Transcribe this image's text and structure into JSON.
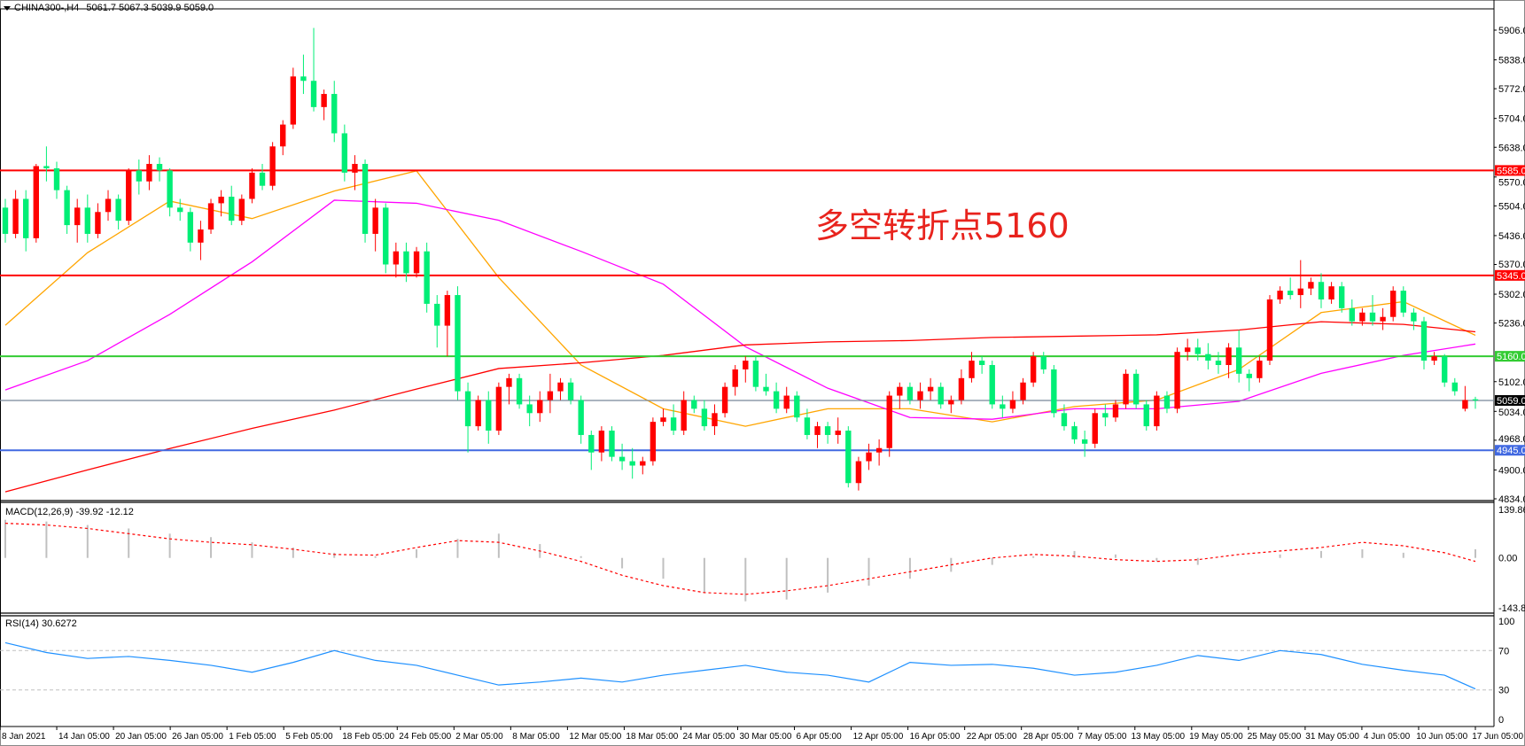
{
  "header": {
    "symbol": "CHINA300-,H4",
    "ohlc": "5061.7 5067.3 5039.9 5059.0"
  },
  "annotation": "多空转折点5160",
  "macd": {
    "label": "MACD(12,26,9) -39.92 -12.12",
    "axis": [
      "139.86",
      "0.00",
      "-143.82"
    ],
    "range": [
      -143.82,
      139.86
    ]
  },
  "rsi": {
    "label": "RSI(14) 30.6272",
    "axis": [
      "100",
      "70",
      "30",
      "0"
    ],
    "levels": [
      70,
      30
    ]
  },
  "colors": {
    "bull": "#ff0000",
    "bear": "#00ee76",
    "ma_fast": "#ffa500",
    "ma_mid": "#ff00ff",
    "ma_slow": "#ff0000",
    "macd_hist": "#c0c0c0",
    "macd_signal": "#ff0000",
    "rsi": "#1e90ff"
  },
  "price_axis": {
    "range": [
      4834,
      5906
    ],
    "labels": [
      "5906.0",
      "5838.0",
      "5772.0",
      "5704.0",
      "5638.0",
      "5570.0",
      "5504.0",
      "5436.0",
      "5370.0",
      "5302.0",
      "5236.0",
      "5102.0",
      "5034.0",
      "4968.0",
      "4900.0",
      "4834.0"
    ]
  },
  "levels": [
    {
      "price": 5585,
      "label": "5585.0",
      "color": "#ff0000"
    },
    {
      "price": 5345,
      "label": "5345.0",
      "color": "#ff0000"
    },
    {
      "price": 5160,
      "label": "5160.0",
      "color": "#33cc33"
    },
    {
      "price": 5059,
      "label": "5059.0",
      "color": "#000000",
      "line": "#778899"
    },
    {
      "price": 4945,
      "label": "4945.0",
      "color": "#4169e1"
    }
  ],
  "dates": [
    "8 Jan 2021",
    "14 Jan 05:00",
    "20 Jan 05:00",
    "26 Jan 05:00",
    "1 Feb 05:00",
    "5 Feb 05:00",
    "18 Feb 05:00",
    "24 Feb 05:00",
    "2 Mar 05:00",
    "8 Mar 05:00",
    "12 Mar 05:00",
    "18 Mar 05:00",
    "24 Mar 05:00",
    "30 Mar 05:00",
    "6 Apr 05:00",
    "12 Apr 05:00",
    "16 Apr 05:00",
    "22 Apr 05:00",
    "28 Apr 05:00",
    "7 May 05:00",
    "13 May 05:00",
    "19 May 05:00",
    "25 May 05:00",
    "31 May 05:00",
    "4 Jun 05:00",
    "10 Jun 05:00",
    "17 Jun 05:00"
  ],
  "candles": [
    [
      5500,
      5520,
      5420,
      5440
    ],
    [
      5440,
      5540,
      5430,
      5520
    ],
    [
      5520,
      5540,
      5400,
      5430
    ],
    [
      5430,
      5600,
      5420,
      5595
    ],
    [
      5595,
      5640,
      5560,
      5590
    ],
    [
      5590,
      5605,
      5520,
      5540
    ],
    [
      5540,
      5550,
      5440,
      5460
    ],
    [
      5460,
      5520,
      5420,
      5500
    ],
    [
      5500,
      5530,
      5420,
      5440
    ],
    [
      5440,
      5510,
      5430,
      5490
    ],
    [
      5490,
      5540,
      5470,
      5520
    ],
    [
      5520,
      5530,
      5450,
      5470
    ],
    [
      5470,
      5590,
      5460,
      5585
    ],
    [
      5585,
      5610,
      5530,
      5560
    ],
    [
      5560,
      5620,
      5540,
      5600
    ],
    [
      5600,
      5615,
      5560,
      5585
    ],
    [
      5585,
      5590,
      5480,
      5500
    ],
    [
      5500,
      5520,
      5470,
      5490
    ],
    [
      5490,
      5500,
      5400,
      5420
    ],
    [
      5420,
      5470,
      5380,
      5450
    ],
    [
      5450,
      5520,
      5440,
      5510
    ],
    [
      5510,
      5540,
      5480,
      5525
    ],
    [
      5525,
      5550,
      5460,
      5470
    ],
    [
      5470,
      5530,
      5460,
      5520
    ],
    [
      5520,
      5590,
      5510,
      5580
    ],
    [
      5580,
      5600,
      5540,
      5550
    ],
    [
      5550,
      5650,
      5540,
      5640
    ],
    [
      5640,
      5700,
      5620,
      5690
    ],
    [
      5690,
      5820,
      5680,
      5800
    ],
    [
      5800,
      5850,
      5760,
      5790
    ],
    [
      5790,
      5911,
      5720,
      5730
    ],
    [
      5730,
      5770,
      5700,
      5760
    ],
    [
      5760,
      5790,
      5650,
      5670
    ],
    [
      5670,
      5690,
      5560,
      5580
    ],
    [
      5580,
      5620,
      5540,
      5600
    ],
    [
      5600,
      5610,
      5420,
      5440
    ],
    [
      5440,
      5520,
      5400,
      5500
    ],
    [
      5500,
      5510,
      5350,
      5370
    ],
    [
      5370,
      5420,
      5340,
      5400
    ],
    [
      5400,
      5420,
      5330,
      5350
    ],
    [
      5350,
      5410,
      5340,
      5400
    ],
    [
      5400,
      5420,
      5260,
      5280
    ],
    [
      5280,
      5300,
      5180,
      5230
    ],
    [
      5230,
      5310,
      5160,
      5300
    ],
    [
      5300,
      5320,
      5060,
      5080
    ],
    [
      5080,
      5100,
      4940,
      5000
    ],
    [
      5000,
      5070,
      4990,
      5060
    ],
    [
      5060,
      5080,
      4960,
      4990
    ],
    [
      4990,
      5100,
      4980,
      5090
    ],
    [
      5090,
      5120,
      5050,
      5110
    ],
    [
      5110,
      5120,
      5040,
      5050
    ],
    [
      5050,
      5070,
      5000,
      5030
    ],
    [
      5030,
      5080,
      5010,
      5060
    ],
    [
      5060,
      5120,
      5030,
      5080
    ],
    [
      5080,
      5110,
      5060,
      5100
    ],
    [
      5100,
      5110,
      5050,
      5060
    ],
    [
      5060,
      5070,
      4960,
      4980
    ],
    [
      4980,
      4990,
      4900,
      4940
    ],
    [
      4940,
      5000,
      4920,
      4990
    ],
    [
      4990,
      5000,
      4920,
      4930
    ],
    [
      4930,
      4960,
      4900,
      4920
    ],
    [
      4920,
      4950,
      4880,
      4910
    ],
    [
      4910,
      4930,
      4890,
      4920
    ],
    [
      4920,
      5020,
      4910,
      5010
    ],
    [
      5010,
      5040,
      5000,
      5020
    ],
    [
      5020,
      5050,
      4980,
      4990
    ],
    [
      4990,
      5080,
      4980,
      5060
    ],
    [
      5060,
      5070,
      5030,
      5040
    ],
    [
      5040,
      5060,
      4990,
      5000
    ],
    [
      5000,
      5050,
      4980,
      5030
    ],
    [
      5030,
      5100,
      5020,
      5090
    ],
    [
      5090,
      5140,
      5070,
      5130
    ],
    [
      5130,
      5160,
      5100,
      5150
    ],
    [
      5150,
      5160,
      5080,
      5090
    ],
    [
      5090,
      5120,
      5070,
      5080
    ],
    [
      5080,
      5100,
      5030,
      5040
    ],
    [
      5040,
      5090,
      5030,
      5070
    ],
    [
      5070,
      5080,
      5010,
      5020
    ],
    [
      5020,
      5040,
      4970,
      4980
    ],
    [
      4980,
      5010,
      4950,
      5000
    ],
    [
      5000,
      5010,
      4960,
      4980
    ],
    [
      4980,
      5020,
      4960,
      4990
    ],
    [
      4990,
      5000,
      4860,
      4870
    ],
    [
      4870,
      4930,
      4853,
      4920
    ],
    [
      4920,
      4960,
      4900,
      4940
    ],
    [
      4940,
      4970,
      4910,
      4950
    ],
    [
      4950,
      5080,
      4930,
      5070
    ],
    [
      5070,
      5100,
      5040,
      5090
    ],
    [
      5090,
      5100,
      5050,
      5060
    ],
    [
      5060,
      5100,
      5040,
      5080
    ],
    [
      5080,
      5110,
      5060,
      5090
    ],
    [
      5090,
      5100,
      5040,
      5050
    ],
    [
      5050,
      5070,
      5030,
      5060
    ],
    [
      5060,
      5130,
      5050,
      5110
    ],
    [
      5110,
      5170,
      5100,
      5150
    ],
    [
      5150,
      5160,
      5120,
      5140
    ],
    [
      5140,
      5150,
      5040,
      5050
    ],
    [
      5050,
      5070,
      5020,
      5040
    ],
    [
      5040,
      5080,
      5030,
      5060
    ],
    [
      5060,
      5110,
      5050,
      5100
    ],
    [
      5100,
      5170,
      5090,
      5160
    ],
    [
      5160,
      5170,
      5120,
      5130
    ],
    [
      5130,
      5140,
      5020,
      5030
    ],
    [
      5030,
      5050,
      4990,
      5000
    ],
    [
      5000,
      5010,
      4960,
      4970
    ],
    [
      4970,
      4990,
      4930,
      4960
    ],
    [
      4960,
      5040,
      4950,
      5030
    ],
    [
      5030,
      5050,
      5000,
      5020
    ],
    [
      5020,
      5060,
      5010,
      5050
    ],
    [
      5050,
      5130,
      5040,
      5120
    ],
    [
      5120,
      5130,
      5040,
      5050
    ],
    [
      5050,
      5060,
      4990,
      5000
    ],
    [
      5000,
      5080,
      4990,
      5070
    ],
    [
      5070,
      5080,
      5030,
      5040
    ],
    [
      5040,
      5180,
      5030,
      5170
    ],
    [
      5170,
      5200,
      5150,
      5180
    ],
    [
      5180,
      5200,
      5150,
      5165
    ],
    [
      5165,
      5190,
      5130,
      5150
    ],
    [
      5150,
      5170,
      5120,
      5140
    ],
    [
      5140,
      5190,
      5110,
      5180
    ],
    [
      5180,
      5220,
      5100,
      5120
    ],
    [
      5120,
      5130,
      5080,
      5110
    ],
    [
      5110,
      5160,
      5100,
      5150
    ],
    [
      5150,
      5300,
      5140,
      5290
    ],
    [
      5290,
      5320,
      5280,
      5310
    ],
    [
      5310,
      5340,
      5290,
      5300
    ],
    [
      5300,
      5380,
      5270,
      5315
    ],
    [
      5315,
      5340,
      5300,
      5330
    ],
    [
      5330,
      5350,
      5270,
      5290
    ],
    [
      5290,
      5330,
      5280,
      5320
    ],
    [
      5320,
      5330,
      5260,
      5270
    ],
    [
      5270,
      5290,
      5230,
      5240
    ],
    [
      5240,
      5270,
      5230,
      5260
    ],
    [
      5260,
      5300,
      5230,
      5240
    ],
    [
      5240,
      5270,
      5220,
      5250
    ],
    [
      5250,
      5320,
      5240,
      5310
    ],
    [
      5310,
      5320,
      5250,
      5260
    ],
    [
      5260,
      5270,
      5220,
      5240
    ],
    [
      5240,
      5250,
      5130,
      5150
    ],
    [
      5150,
      5170,
      5140,
      5160
    ],
    [
      5160,
      5165,
      5090,
      5100
    ],
    [
      5100,
      5110,
      5070,
      5080
    ],
    [
      5040,
      5092,
      5034,
      5060
    ],
    [
      5061.7,
      5067.3,
      5039.9,
      5059.0
    ]
  ],
  "moving_averages": [
    {
      "color": "#ffa500",
      "step": 8,
      "values": [
        5231,
        5397,
        5515,
        5475,
        5538,
        5584,
        5340,
        5140,
        5040,
        5000,
        5040,
        5040,
        5010,
        5045,
        5060,
        5130,
        5260,
        5285,
        5208
      ]
    },
    {
      "color": "#ff00ff",
      "step": 8,
      "values": [
        5083,
        5150,
        5256,
        5376,
        5517,
        5510,
        5471,
        5400,
        5325,
        5182,
        5087,
        5020,
        5016,
        5040,
        5040,
        5057,
        5121,
        5162,
        5188
      ]
    },
    {
      "color": "#ff0000",
      "step": 8,
      "values": [
        4850,
        4900,
        4949,
        4995,
        5037,
        5085,
        5132,
        5145,
        5162,
        5186,
        5193,
        5196,
        5203,
        5206,
        5209,
        5220,
        5239,
        5233,
        5216
      ]
    }
  ],
  "macd_series": {
    "step": 4,
    "histogram": [
      110,
      105,
      95,
      85,
      70,
      60,
      45,
      30,
      15,
      5,
      25,
      55,
      70,
      40,
      5,
      -30,
      -60,
      -100,
      -125,
      -120,
      -100,
      -80,
      -60,
      -40,
      -20,
      5,
      20,
      10,
      -10,
      -20,
      0,
      10,
      20,
      25,
      15,
      0,
      25
    ],
    "signal": [
      100,
      95,
      85,
      70,
      55,
      45,
      38,
      25,
      10,
      8,
      30,
      50,
      45,
      20,
      -10,
      -50,
      -80,
      -100,
      -105,
      -95,
      -80,
      -60,
      -40,
      -20,
      0,
      10,
      5,
      -5,
      -10,
      -5,
      10,
      20,
      30,
      45,
      35,
      15,
      -10
    ]
  },
  "rsi_series": {
    "step": 4,
    "values": [
      78,
      68,
      62,
      64,
      60,
      55,
      48,
      58,
      70,
      60,
      55,
      45,
      35,
      38,
      42,
      38,
      45,
      50,
      55,
      48,
      45,
      38,
      58,
      55,
      56,
      52,
      45,
      48,
      55,
      65,
      60,
      70,
      66,
      56,
      50,
      45,
      31
    ]
  }
}
